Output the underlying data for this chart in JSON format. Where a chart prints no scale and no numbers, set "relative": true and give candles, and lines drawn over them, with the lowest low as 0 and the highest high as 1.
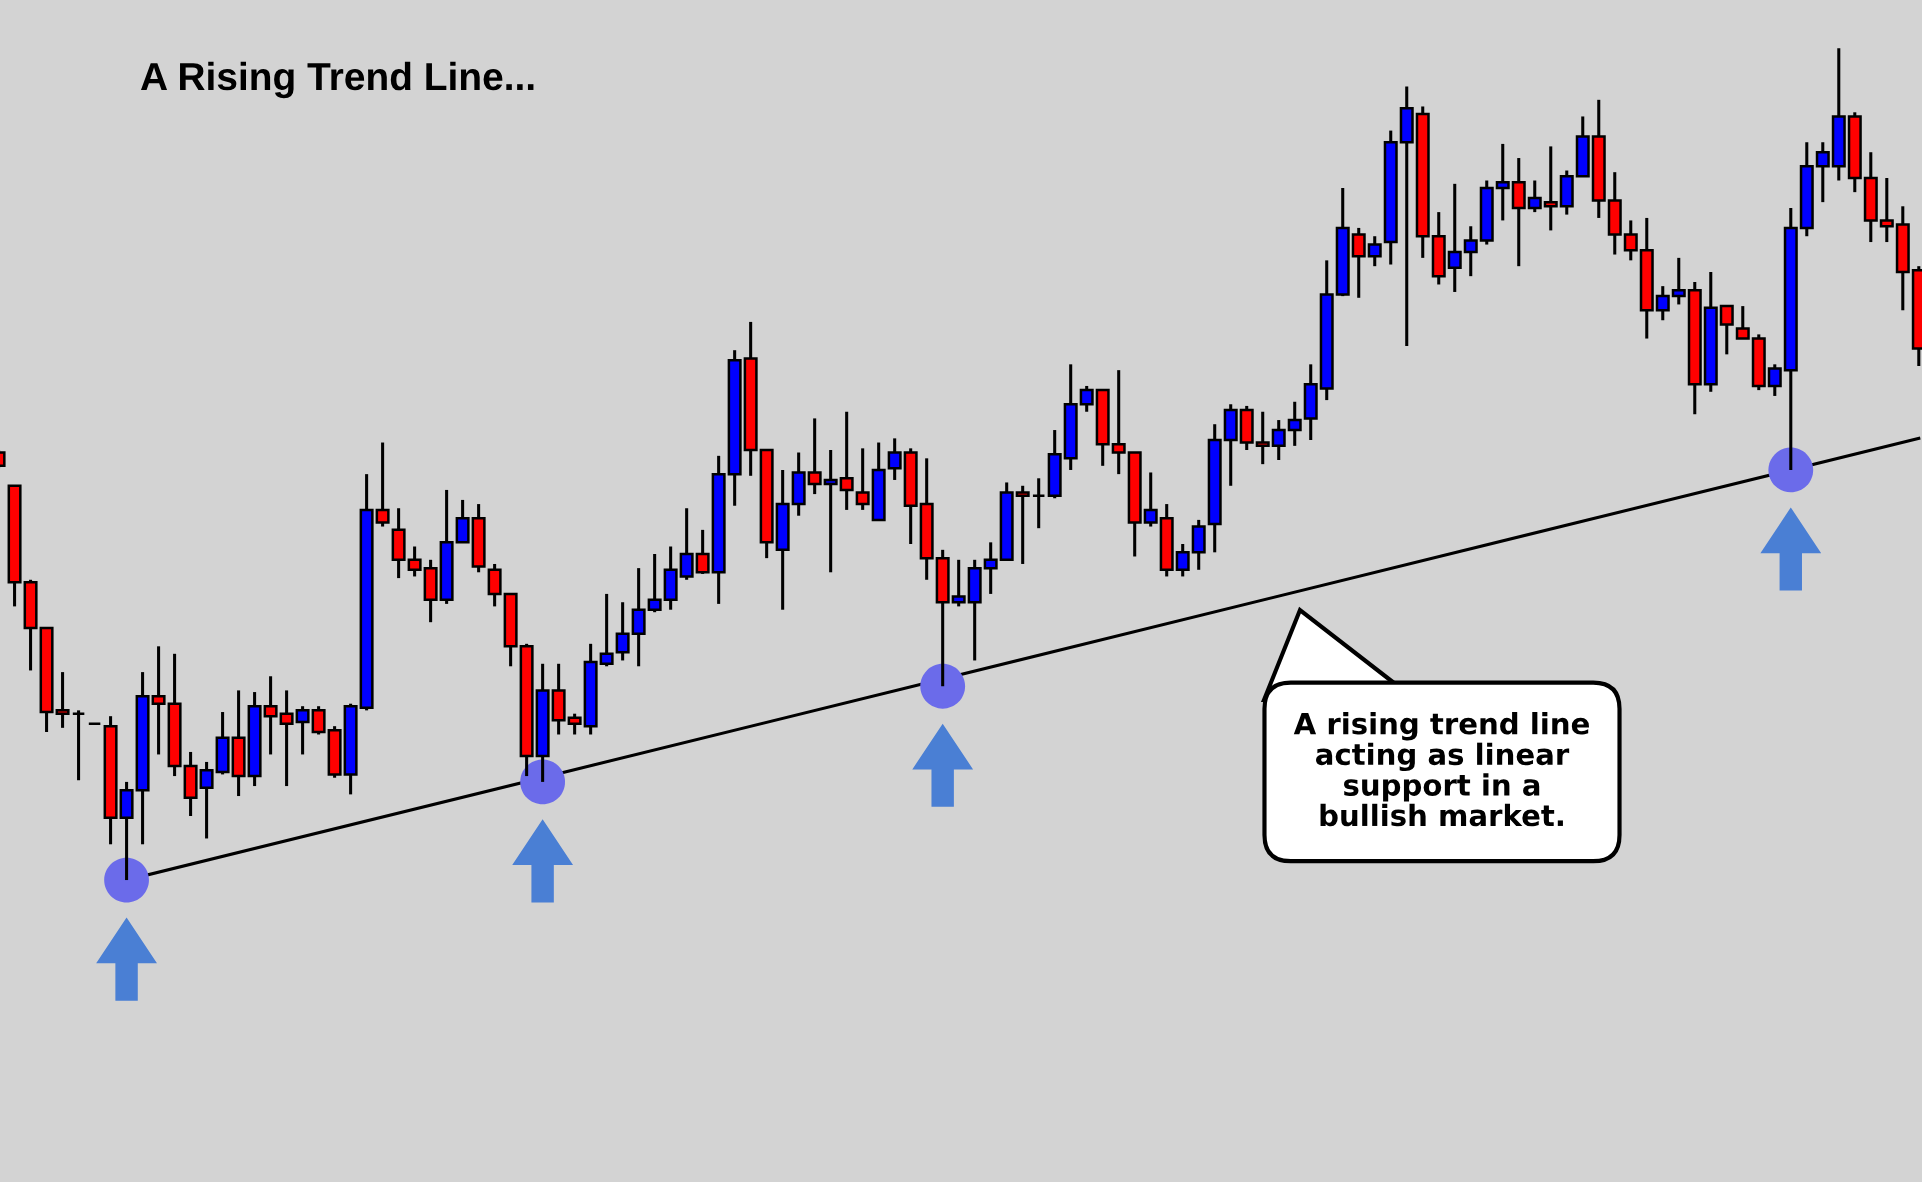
{
  "chart_data": {
    "type": "candlestick",
    "title": "A Rising Trend Line...",
    "relative": true,
    "annotations": [
      "A rising trend line\nacting as linear\nsupport in a\nbullish market."
    ],
    "categories": [
      null,
      null,
      null,
      null,
      null,
      null,
      null,
      null,
      null,
      null,
      null,
      null,
      null,
      null,
      null,
      null,
      null,
      null,
      null,
      null,
      null,
      null,
      null,
      null,
      null,
      null,
      null,
      null,
      null,
      null,
      null,
      null,
      null,
      null,
      null,
      null,
      null,
      null,
      null,
      null,
      null,
      null,
      null,
      null,
      null,
      null,
      null,
      null,
      null,
      null,
      null,
      null,
      null,
      null,
      null,
      null,
      null,
      null,
      null,
      null,
      null,
      null,
      null,
      null,
      null,
      null,
      null,
      null,
      null,
      null,
      null,
      null,
      null,
      null,
      null,
      null,
      null,
      null,
      null,
      null,
      null,
      null,
      null,
      null,
      null,
      null,
      null,
      null,
      null,
      null,
      null,
      null,
      null,
      null,
      null,
      null,
      null,
      null,
      null,
      null,
      null,
      null,
      null,
      null,
      null,
      null,
      null,
      null,
      null,
      null,
      null,
      null,
      null,
      null,
      null,
      null,
      null,
      null,
      null,
      null,
      null
    ],
    "ohlc": [
      [
        0.514,
        0.517,
        0.495,
        0.498
      ],
      [
        0.474,
        0.474,
        0.329,
        0.358
      ],
      [
        0.358,
        0.361,
        0.252,
        0.303
      ],
      [
        0.303,
        0.303,
        0.178,
        0.202
      ],
      [
        0.204,
        0.25,
        0.183,
        0.2
      ],
      [
        0.2,
        0.204,
        0.12,
        0.2
      ],
      [
        0.188,
        0.188,
        0.188,
        0.188
      ],
      [
        0.185,
        0.197,
        0.043,
        0.075
      ],
      [
        0.075,
        0.118,
        0,
        0.108
      ],
      [
        0.108,
        0.25,
        0.043,
        0.221
      ],
      [
        0.221,
        0.281,
        0.151,
        0.212
      ],
      [
        0.212,
        0.272,
        0.125,
        0.137
      ],
      [
        0.137,
        0.154,
        0.077,
        0.099
      ],
      [
        0.111,
        0.142,
        0.05,
        0.132
      ],
      [
        0.13,
        0.202,
        0.127,
        0.171
      ],
      [
        0.171,
        0.228,
        0.101,
        0.125
      ],
      [
        0.125,
        0.226,
        0.113,
        0.209
      ],
      [
        0.209,
        0.245,
        0.151,
        0.197
      ],
      [
        0.2,
        0.228,
        0.113,
        0.188
      ],
      [
        0.19,
        0.209,
        0.151,
        0.204
      ],
      [
        0.204,
        0.209,
        0.175,
        0.178
      ],
      [
        0.18,
        0.185,
        0.123,
        0.127
      ],
      [
        0.127,
        0.212,
        0.103,
        0.209
      ],
      [
        0.207,
        0.488,
        0.204,
        0.445
      ],
      [
        0.445,
        0.526,
        0.425,
        0.43
      ],
      [
        0.421,
        0.447,
        0.363,
        0.385
      ],
      [
        0.385,
        0.401,
        0.365,
        0.373
      ],
      [
        0.375,
        0.385,
        0.31,
        0.337
      ],
      [
        0.337,
        0.469,
        0.332,
        0.406
      ],
      [
        0.406,
        0.457,
        0.406,
        0.435
      ],
      [
        0.435,
        0.452,
        0.37,
        0.377
      ],
      [
        0.373,
        0.38,
        0.329,
        0.344
      ],
      [
        0.344,
        0.344,
        0.257,
        0.281
      ],
      [
        0.281,
        0.284,
        0.125,
        0.149
      ],
      [
        0.149,
        0.26,
        0.118,
        0.228
      ],
      [
        0.228,
        0.26,
        0.175,
        0.192
      ],
      [
        0.195,
        0.2,
        0.175,
        0.188
      ],
      [
        0.185,
        0.284,
        0.175,
        0.262
      ],
      [
        0.26,
        0.344,
        0.257,
        0.272
      ],
      [
        0.274,
        0.334,
        0.264,
        0.296
      ],
      [
        0.296,
        0.375,
        0.257,
        0.325
      ],
      [
        0.325,
        0.392,
        0.322,
        0.337
      ],
      [
        0.337,
        0.401,
        0.325,
        0.373
      ],
      [
        0.365,
        0.447,
        0.361,
        0.392
      ],
      [
        0.392,
        0.421,
        0.368,
        0.37
      ],
      [
        0.37,
        0.51,
        0.332,
        0.488
      ],
      [
        0.488,
        0.637,
        0.45,
        0.625
      ],
      [
        0.627,
        0.671,
        0.486,
        0.517
      ],
      [
        0.517,
        0.517,
        0.387,
        0.406
      ],
      [
        0.397,
        0.493,
        0.325,
        0.452
      ],
      [
        0.452,
        0.514,
        0.438,
        0.49
      ],
      [
        0.49,
        0.555,
        0.464,
        0.476
      ],
      [
        0.476,
        0.517,
        0.37,
        0.481
      ],
      [
        0.483,
        0.563,
        0.445,
        0.469
      ],
      [
        0.466,
        0.519,
        0.445,
        0.452
      ],
      [
        0.433,
        0.526,
        0.433,
        0.493
      ],
      [
        0.495,
        0.531,
        0.481,
        0.514
      ],
      [
        0.514,
        0.519,
        0.404,
        0.45
      ],
      [
        0.452,
        0.507,
        0.361,
        0.387
      ],
      [
        0.387,
        0.397,
        0.233,
        0.334
      ],
      [
        0.334,
        0.385,
        0.329,
        0.341
      ],
      [
        0.334,
        0.385,
        0.264,
        0.375
      ],
      [
        0.375,
        0.406,
        0.344,
        0.385
      ],
      [
        0.385,
        0.478,
        0.385,
        0.466
      ],
      [
        0.466,
        0.474,
        0.38,
        0.462
      ],
      [
        0.462,
        0.483,
        0.423,
        0.462
      ],
      [
        0.462,
        0.541,
        0.459,
        0.512
      ],
      [
        0.507,
        0.62,
        0.493,
        0.572
      ],
      [
        0.572,
        0.594,
        0.563,
        0.589
      ],
      [
        0.589,
        0.589,
        0.498,
        0.524
      ],
      [
        0.524,
        0.613,
        0.488,
        0.514
      ],
      [
        0.514,
        0.514,
        0.389,
        0.43
      ],
      [
        0.43,
        0.49,
        0.425,
        0.445
      ],
      [
        0.435,
        0.452,
        0.365,
        0.373
      ],
      [
        0.373,
        0.404,
        0.365,
        0.394
      ],
      [
        0.394,
        0.433,
        0.373,
        0.425
      ],
      [
        0.428,
        0.548,
        0.394,
        0.529
      ],
      [
        0.529,
        0.572,
        0.474,
        0.565
      ],
      [
        0.565,
        0.57,
        0.517,
        0.526
      ],
      [
        0.526,
        0.563,
        0.5,
        0.522
      ],
      [
        0.522,
        0.553,
        0.505,
        0.541
      ],
      [
        0.541,
        0.575,
        0.522,
        0.553
      ],
      [
        0.555,
        0.62,
        0.529,
        0.596
      ],
      [
        0.591,
        0.745,
        0.577,
        0.704
      ],
      [
        0.704,
        0.832,
        0.702,
        0.784
      ],
      [
        0.776,
        0.784,
        0.7,
        0.75
      ],
      [
        0.75,
        0.774,
        0.738,
        0.764
      ],
      [
        0.767,
        0.901,
        0.74,
        0.887
      ],
      [
        0.887,
        0.954,
        0.642,
        0.928
      ],
      [
        0.921,
        0.93,
        0.748,
        0.774
      ],
      [
        0.774,
        0.803,
        0.716,
        0.726
      ],
      [
        0.736,
        0.837,
        0.707,
        0.755
      ],
      [
        0.755,
        0.786,
        0.726,
        0.769
      ],
      [
        0.769,
        0.841,
        0.764,
        0.832
      ],
      [
        0.832,
        0.885,
        0.793,
        0.839
      ],
      [
        0.839,
        0.868,
        0.738,
        0.808
      ],
      [
        0.808,
        0.841,
        0.803,
        0.82
      ],
      [
        0.815,
        0.882,
        0.781,
        0.81
      ],
      [
        0.81,
        0.853,
        0.8,
        0.846
      ],
      [
        0.846,
        0.918,
        0.846,
        0.894
      ],
      [
        0.894,
        0.938,
        0.796,
        0.817
      ],
      [
        0.817,
        0.851,
        0.752,
        0.776
      ],
      [
        0.776,
        0.793,
        0.745,
        0.757
      ],
      [
        0.757,
        0.796,
        0.651,
        0.685
      ],
      [
        0.685,
        0.714,
        0.673,
        0.702
      ],
      [
        0.702,
        0.748,
        0.692,
        0.709
      ],
      [
        0.709,
        0.719,
        0.56,
        0.596
      ],
      [
        0.596,
        0.731,
        0.587,
        0.688
      ],
      [
        0.69,
        0.69,
        0.632,
        0.668
      ],
      [
        0.663,
        0.69,
        0.651,
        0.651
      ],
      [
        0.651,
        0.656,
        0.589,
        0.594
      ],
      [
        0.594,
        0.62,
        0.582,
        0.615
      ],
      [
        0.613,
        0.808,
        0.493,
        0.784
      ],
      [
        0.784,
        0.887,
        0.774,
        0.858
      ],
      [
        0.858,
        0.887,
        0.815,
        0.875
      ],
      [
        0.858,
        1,
        0.841,
        0.918
      ],
      [
        0.918,
        0.923,
        0.827,
        0.844
      ],
      [
        0.844,
        0.875,
        0.767,
        0.793
      ],
      [
        0.793,
        0.844,
        0.767,
        0.786
      ],
      [
        0.788,
        0.81,
        0.685,
        0.731
      ],
      [
        0.733,
        0.738,
        0.618,
        0.639
      ]
    ],
    "colors": [
      "#ff0000",
      "#ff0000",
      "#ff0000",
      "#ff0000",
      "#ff0000",
      "#000000",
      "#000000",
      "#ff0000",
      "#0000ff",
      "#0000ff",
      "#ff0000",
      "#ff0000",
      "#ff0000",
      "#0000ff",
      "#0000ff",
      "#ff0000",
      "#0000ff",
      "#ff0000",
      "#ff0000",
      "#0000ff",
      "#ff0000",
      "#ff0000",
      "#0000ff",
      "#0000ff",
      "#ff0000",
      "#ff0000",
      "#ff0000",
      "#ff0000",
      "#0000ff",
      "#0000ff",
      "#ff0000",
      "#ff0000",
      "#ff0000",
      "#ff0000",
      "#0000ff",
      "#ff0000",
      "#ff0000",
      "#0000ff",
      "#0000ff",
      "#0000ff",
      "#0000ff",
      "#0000ff",
      "#0000ff",
      "#0000ff",
      "#ff0000",
      "#0000ff",
      "#0000ff",
      "#ff0000",
      "#ff0000",
      "#0000ff",
      "#0000ff",
      "#ff0000",
      "#0000ff",
      "#ff0000",
      "#ff0000",
      "#0000ff",
      "#0000ff",
      "#ff0000",
      "#ff0000",
      "#ff0000",
      "#0000ff",
      "#0000ff",
      "#0000ff",
      "#0000ff",
      "#ff0000",
      "#000000",
      "#0000ff",
      "#0000ff",
      "#0000ff",
      "#ff0000",
      "#ff0000",
      "#ff0000",
      "#0000ff",
      "#ff0000",
      "#0000ff",
      "#0000ff",
      "#0000ff",
      "#0000ff",
      "#ff0000",
      "#ff0000",
      "#0000ff",
      "#0000ff",
      "#0000ff",
      "#0000ff",
      "#0000ff",
      "#ff0000",
      "#0000ff",
      "#0000ff",
      "#0000ff",
      "#ff0000",
      "#ff0000",
      "#0000ff",
      "#0000ff",
      "#0000ff",
      "#0000ff",
      "#ff0000",
      "#0000ff",
      "#ff0000",
      "#0000ff",
      "#0000ff",
      "#ff0000",
      "#ff0000",
      "#ff0000",
      "#ff0000",
      "#0000ff",
      "#0000ff",
      "#ff0000",
      "#0000ff",
      "#ff0000",
      "#ff0000",
      "#ff0000",
      "#0000ff",
      "#0000ff",
      "#0000ff",
      "#0000ff",
      "#0000ff",
      "#ff0000",
      "#ff0000",
      "#ff0000",
      "#ff0000",
      "#ff0000"
    ],
    "series": [
      {
        "type": "line",
        "color": "#000000",
        "values": [
          null,
          null,
          null,
          null,
          null,
          null,
          null,
          null,
          0,
          null,
          null,
          null,
          null,
          null,
          null,
          null,
          null,
          null,
          null,
          null,
          null,
          null,
          null,
          null,
          null,
          null,
          null,
          null,
          null,
          null,
          null,
          null,
          null,
          null,
          null,
          null,
          null,
          null,
          null,
          null,
          null,
          null,
          null,
          null,
          null,
          null,
          null,
          null,
          null,
          null,
          null,
          null,
          null,
          null,
          null,
          null,
          null,
          null,
          null,
          null,
          null,
          null,
          null,
          null,
          null,
          null,
          null,
          null,
          null,
          null,
          null,
          null,
          null,
          null,
          null,
          null,
          null,
          null,
          null,
          null,
          null,
          null,
          null,
          null,
          null,
          null,
          null,
          null,
          null,
          null,
          null,
          null,
          null,
          null,
          null,
          null,
          null,
          null,
          null,
          null,
          null,
          null,
          null,
          null,
          null,
          null,
          null,
          null,
          null,
          null,
          null,
          null,
          null,
          null,
          null,
          null,
          null,
          null,
          null,
          null,
          0.531
        ]
      },
      {
        "type": "scatter",
        "color": "#6b6bea",
        "marker": "circle",
        "values": [
          null,
          null,
          null,
          null,
          null,
          null,
          null,
          null,
          0,
          null,
          null,
          null,
          null,
          null,
          null,
          null,
          null,
          null,
          null,
          null,
          null,
          null,
          null,
          null,
          null,
          null,
          null,
          null,
          null,
          null,
          null,
          null,
          null,
          null,
          0.118,
          null,
          null,
          null,
          null,
          null,
          null,
          null,
          null,
          null,
          null,
          null,
          null,
          null,
          null,
          null,
          null,
          null,
          null,
          null,
          null,
          null,
          null,
          null,
          null,
          0.233,
          null,
          null,
          null,
          null,
          null,
          null,
          null,
          null,
          null,
          null,
          null,
          null,
          null,
          null,
          null,
          null,
          null,
          null,
          null,
          null,
          null,
          null,
          null,
          null,
          null,
          null,
          null,
          null,
          null,
          null,
          null,
          null,
          null,
          null,
          null,
          null,
          null,
          null,
          null,
          null,
          null,
          null,
          null,
          null,
          null,
          null,
          null,
          null,
          null,
          null,
          null,
          null,
          0.493,
          null,
          null,
          null,
          null,
          null,
          null,
          null,
          null
        ]
      }
    ]
  }
}
